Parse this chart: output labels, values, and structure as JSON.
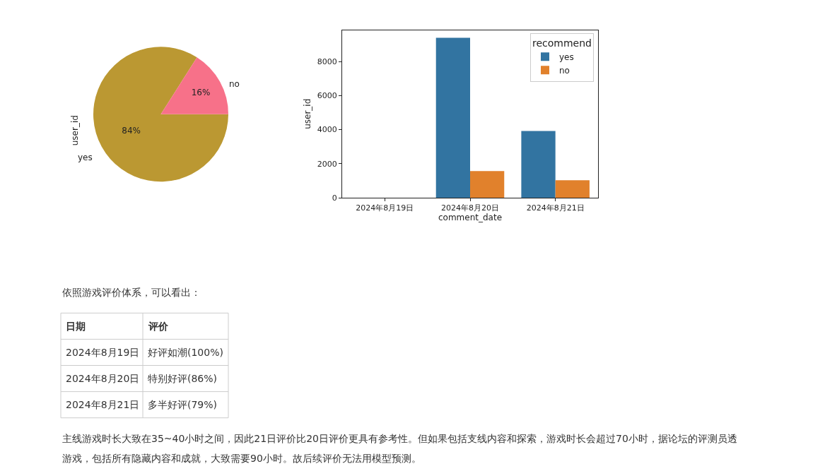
{
  "chart_data": [
    {
      "type": "pie",
      "ylabel": "user_id",
      "categories": [
        "yes",
        "no"
      ],
      "values": [
        84,
        16
      ],
      "colors": [
        "#bb9832",
        "#f77189"
      ],
      "value_labels": [
        "84%",
        "16%"
      ]
    },
    {
      "type": "bar",
      "xlabel": "comment_date",
      "ylabel": "user_id",
      "legend_title": "recommend",
      "legend": "top right",
      "categories": [
        "2024年8月19日",
        "2024年8月20日",
        "2024年8月21日"
      ],
      "ylim": [
        0,
        9850
      ],
      "yticks": [
        0,
        2000,
        4000,
        6000,
        8000
      ],
      "series": [
        {
          "name": "yes",
          "color": "#3274a1",
          "values": [
            0,
            9400,
            3920
          ]
        },
        {
          "name": "no",
          "color": "#e1812c",
          "values": [
            0,
            1570,
            1030
          ]
        }
      ]
    },
    {
      "type": "other",
      "annotations": [
        "依照游戏评价体系，可以看出：",
        "日期",
        "评价",
        "2024年8月19日",
        "好评如潮(100%)",
        "2024年8月20日",
        "特别好评(86%)",
        "2024年8月21日",
        "多半好评(79%)",
        "主线游戏时长大致在35~40小时之间，因此21日评价比20日评价更具有参考性。但如果包括支线内容和探索，游戏时长会超过70小时，据论坛的评测员透",
        "游戏，包括所有隐藏内容和成就，大致需要90小时。故后续评价无法用模型预测。"
      ]
    }
  ]
}
